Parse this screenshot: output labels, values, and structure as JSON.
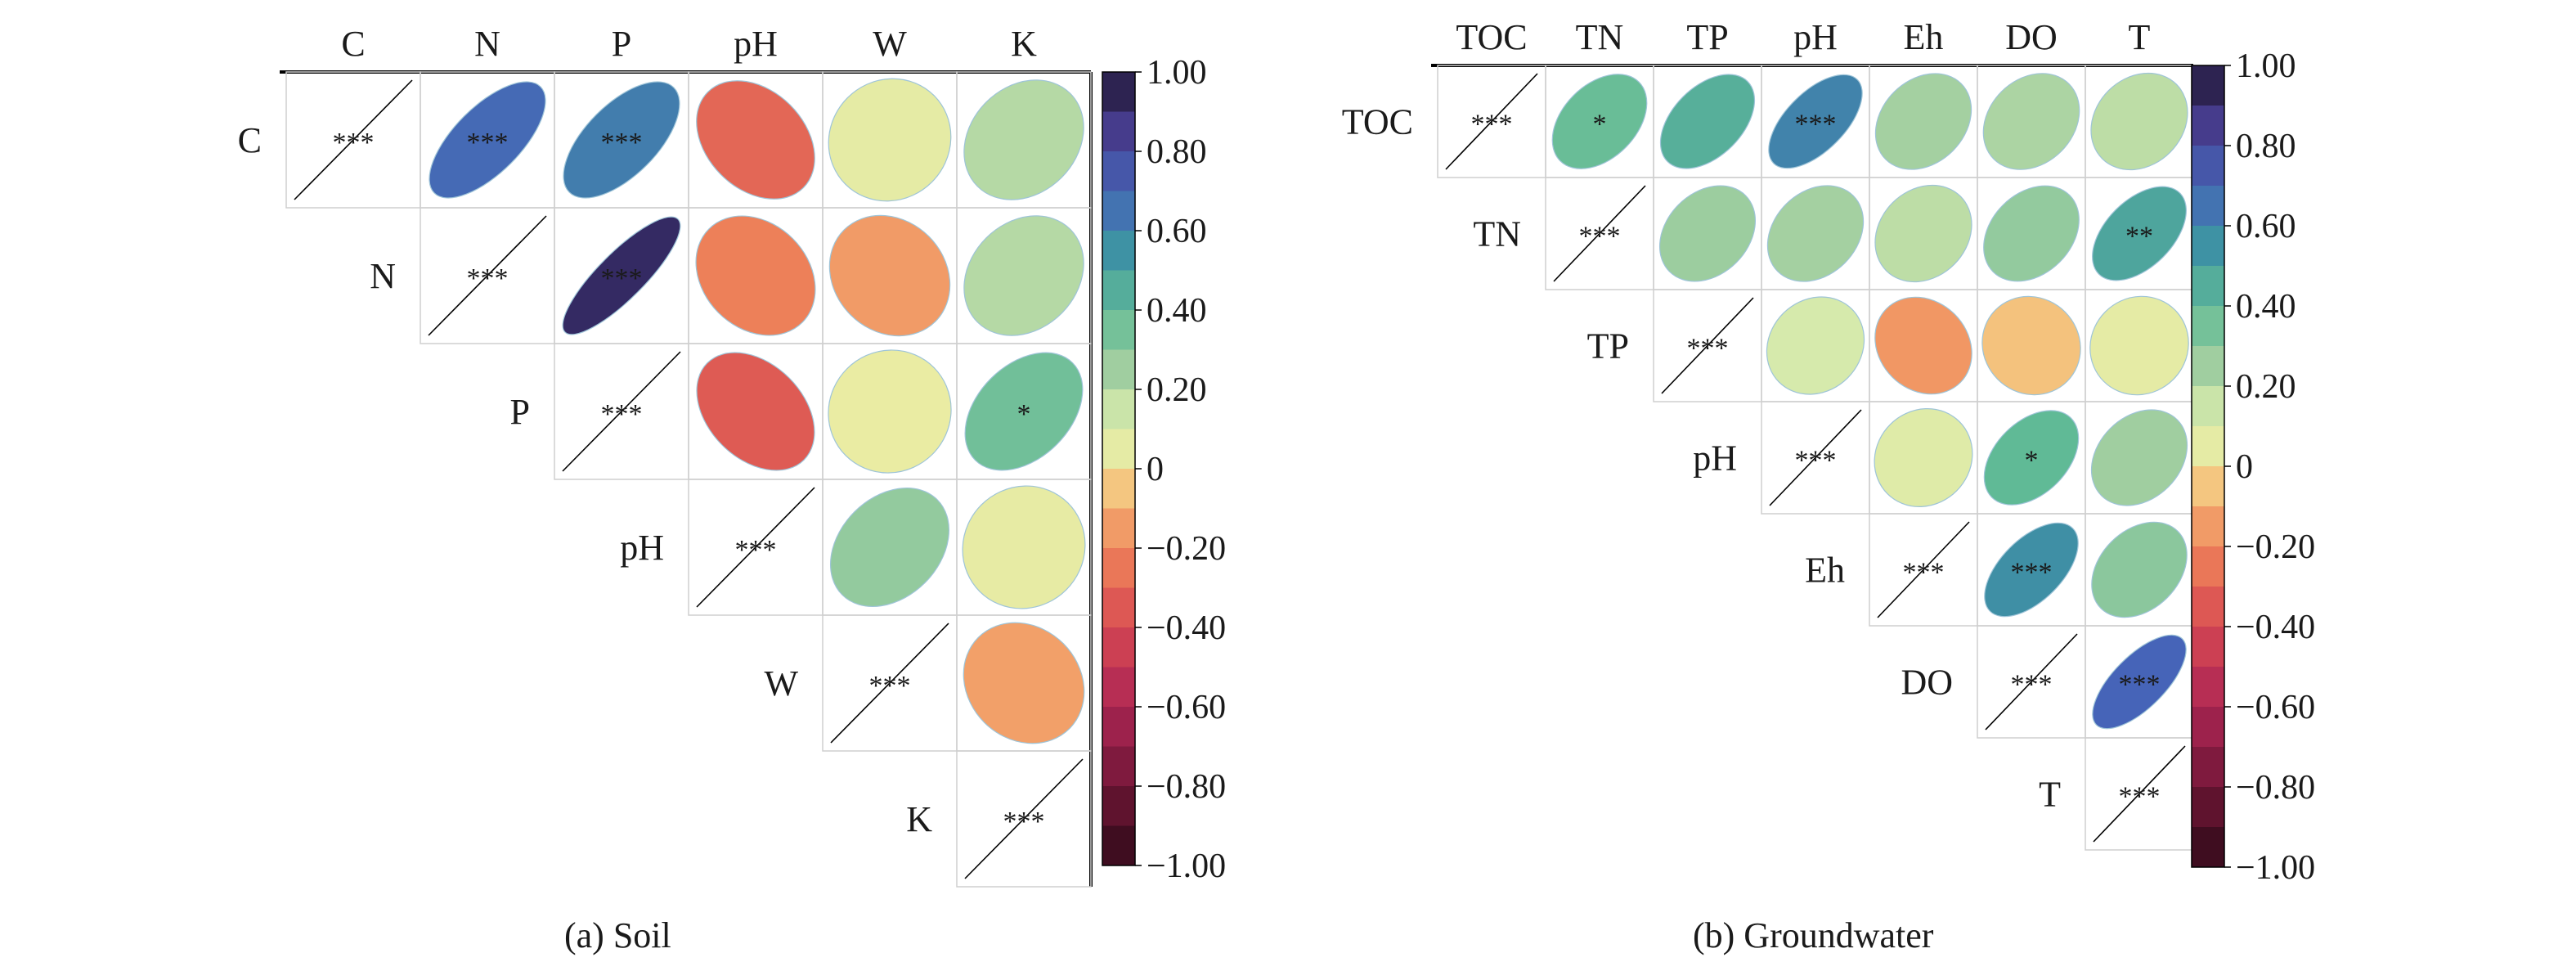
{
  "chart_data": [
    {
      "type": "heatmap",
      "caption": "(a) Soil",
      "variables": [
        "C",
        "N",
        "P",
        "pH",
        "W",
        "K"
      ],
      "values": [
        [
          1.0,
          0.68,
          0.62,
          -0.3,
          0.05,
          0.2
        ],
        [
          null,
          1.0,
          0.92,
          -0.22,
          -0.15,
          0.2
        ],
        [
          null,
          null,
          1.0,
          -0.34,
          0.03,
          0.36
        ],
        [
          null,
          null,
          null,
          1.0,
          0.28,
          0.04
        ],
        [
          null,
          null,
          null,
          null,
          1.0,
          -0.14
        ],
        [
          null,
          null,
          null,
          null,
          null,
          1.0
        ]
      ],
      "significance": [
        [
          "***",
          "***",
          "***",
          "",
          "",
          ""
        ],
        [
          null,
          "***",
          "***",
          "",
          "",
          ""
        ],
        [
          null,
          null,
          "***",
          "",
          "",
          "*"
        ],
        [
          null,
          null,
          null,
          "***",
          "",
          ""
        ],
        [
          null,
          null,
          null,
          null,
          "***",
          ""
        ],
        [
          null,
          null,
          null,
          null,
          null,
          "***"
        ]
      ],
      "colorbar": {
        "range": [
          -1,
          1
        ],
        "ticks": [
          "1.00",
          "0.80",
          "0.60",
          "0.40",
          "0.20",
          "0",
          "−0.20",
          "−0.40",
          "−0.60",
          "−0.80",
          "−1.00"
        ]
      }
    },
    {
      "type": "heatmap",
      "caption": "(b) Groundwater",
      "variables": [
        "TOC",
        "TN",
        "TP",
        "pH",
        "Eh",
        "DO",
        "T"
      ],
      "values": [
        [
          1.0,
          0.38,
          0.44,
          0.6,
          0.24,
          0.22,
          0.18
        ],
        [
          null,
          1.0,
          0.26,
          0.24,
          0.18,
          0.28,
          0.48
        ],
        [
          null,
          null,
          1.0,
          0.12,
          -0.16,
          -0.06,
          0.05
        ],
        [
          null,
          null,
          null,
          1.0,
          0.08,
          0.4,
          0.25
        ],
        [
          null,
          null,
          null,
          null,
          1.0,
          0.56,
          0.3
        ],
        [
          null,
          null,
          null,
          null,
          null,
          1.0,
          0.7
        ],
        [
          null,
          null,
          null,
          null,
          null,
          null,
          1.0
        ]
      ],
      "significance": [
        [
          "***",
          "*",
          "",
          "***",
          "",
          "",
          ""
        ],
        [
          null,
          "***",
          "",
          "",
          "",
          "",
          "**"
        ],
        [
          null,
          null,
          "***",
          "",
          "",
          "",
          ""
        ],
        [
          null,
          null,
          null,
          "***",
          "",
          "*",
          ""
        ],
        [
          null,
          null,
          null,
          null,
          "***",
          "***",
          ""
        ],
        [
          null,
          null,
          null,
          null,
          null,
          "***",
          "***"
        ],
        [
          null,
          null,
          null,
          null,
          null,
          null,
          "***"
        ]
      ],
      "colorbar": {
        "range": [
          -1,
          1
        ],
        "ticks": [
          "1.00",
          "0.80",
          "0.60",
          "0.40",
          "0.20",
          "0",
          "−0.20",
          "−0.40",
          "−0.60",
          "−0.80",
          "−1.00"
        ]
      }
    }
  ]
}
